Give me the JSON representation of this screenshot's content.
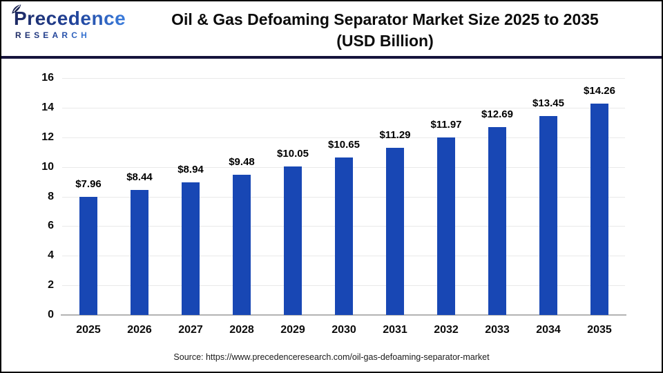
{
  "header": {
    "logo": {
      "brand": "Precedence",
      "sub": "RESEARCH",
      "icon": "leaf-icon"
    },
    "title_line1": "Oil & Gas Defoaming Separator Market Size 2025 to 2035",
    "title_line2": "(USD Billion)"
  },
  "chart_data": {
    "type": "bar",
    "title": "Oil & Gas Defoaming Separator Market Size 2025 to 2035 (USD Billion)",
    "categories": [
      "2025",
      "2026",
      "2027",
      "2028",
      "2029",
      "2030",
      "2031",
      "2032",
      "2033",
      "2034",
      "2035"
    ],
    "values": [
      7.96,
      8.44,
      8.94,
      9.48,
      10.05,
      10.65,
      11.29,
      11.97,
      12.69,
      13.45,
      14.26
    ],
    "labels": [
      "$7.96",
      "$8.44",
      "$8.94",
      "$9.48",
      "$10.05",
      "$10.65",
      "$11.29",
      "$11.97",
      "$12.69",
      "$13.45",
      "$14.26"
    ],
    "xlabel": "",
    "ylabel": "",
    "unit": "USD Billion",
    "ylim": [
      0,
      16
    ],
    "yticks": [
      0,
      2,
      4,
      6,
      8,
      10,
      12,
      14,
      16
    ],
    "grid": "horizontal",
    "legend": "none",
    "bar_color": "#1847b4"
  },
  "footer": {
    "source": "Source: https://www.precedenceresearch.com/oil-gas-defoaming-separator-market"
  },
  "colors": {
    "bar": "#1847b4",
    "divider": "#16143c",
    "logo_navy": "#1e2a63",
    "logo_blue": "#3b7ddd",
    "gridline_gray": "#e9e9e9",
    "baseline_gray": "#b3b3b3"
  }
}
